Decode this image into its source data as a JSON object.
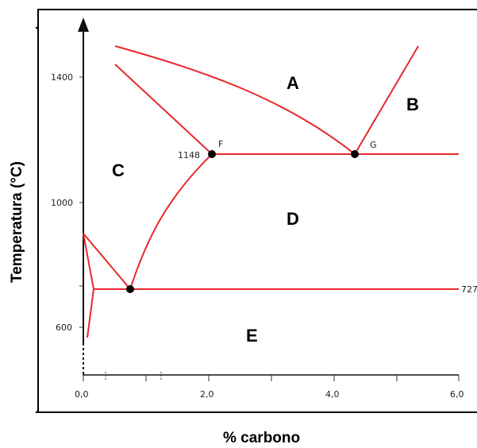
{
  "axes": {
    "x_title": "% carbono",
    "y_title": "Temperatura (°C)",
    "x_ticks": [
      "0,0",
      "2,0",
      "4,0",
      "6,0"
    ],
    "y_ticks": [
      "1400",
      "1000",
      "600"
    ]
  },
  "regions": {
    "A": "A",
    "B": "B",
    "C": "C",
    "D": "D",
    "E": "E"
  },
  "points": {
    "F": "F",
    "G": "G",
    "eutectic_temp": "1148",
    "eutectoid_temp": "727"
  },
  "colors": {
    "phase_lines": "#e8282c",
    "points": "#000000",
    "axes": "#000000"
  }
}
